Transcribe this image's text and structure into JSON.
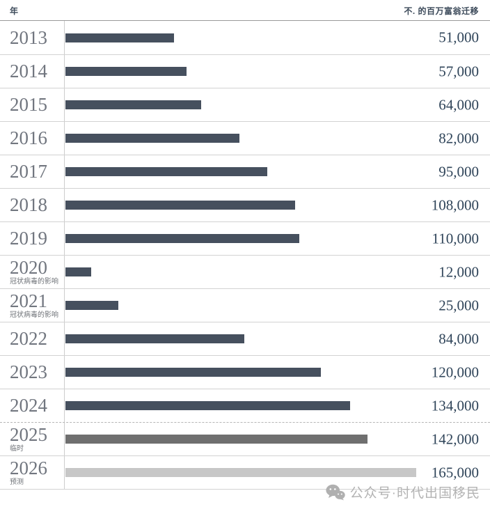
{
  "header": {
    "year_label": "年",
    "value_label": "不. 的百万富翁迁移"
  },
  "chart_data": {
    "type": "bar",
    "orientation": "horizontal",
    "title": "",
    "category_axis_label": "年",
    "value_axis_label": "不. 的百万富翁迁移",
    "categories": [
      "2013",
      "2014",
      "2015",
      "2016",
      "2017",
      "2018",
      "2019",
      "2020",
      "2021",
      "2022",
      "2023",
      "2024",
      "2025",
      "2026"
    ],
    "values": [
      51000,
      57000,
      64000,
      82000,
      95000,
      108000,
      110000,
      12000,
      25000,
      84000,
      120000,
      134000,
      142000,
      165000
    ],
    "value_labels": [
      "51,000",
      "57,000",
      "64,000",
      "82,000",
      "95,000",
      "108,000",
      "110,000",
      "12,000",
      "25,000",
      "84,000",
      "120,000",
      "134,000",
      "142,000",
      "165,000"
    ],
    "category_notes": [
      "",
      "",
      "",
      "",
      "",
      "",
      "",
      "冠状病毒的影响",
      "冠状病毒的影响",
      "",
      "",
      "",
      "临时",
      "预测"
    ],
    "bar_colors": [
      "#46505e",
      "#46505e",
      "#46505e",
      "#46505e",
      "#46505e",
      "#46505e",
      "#46505e",
      "#46505e",
      "#46505e",
      "#46505e",
      "#46505e",
      "#46505e",
      "#6f6f6f",
      "#c7c7c7"
    ],
    "dashed_top": [
      false,
      false,
      false,
      false,
      false,
      false,
      false,
      false,
      false,
      false,
      false,
      false,
      true,
      false
    ],
    "xlim": [
      0,
      165000
    ],
    "grid": "row-separators-only",
    "legend": "none"
  },
  "watermark": {
    "text": "公众号·时代出国移民",
    "icon": "wechat-icon",
    "color": "#b3b3b3"
  },
  "colors": {
    "bar_default": "#46505e",
    "bar_provisional": "#6f6f6f",
    "bar_forecast": "#c7c7c7",
    "value_text": "#2f4459",
    "year_text": "#71767f",
    "separator": "#d2d2d2",
    "header_rule": "#9a9a9a"
  }
}
